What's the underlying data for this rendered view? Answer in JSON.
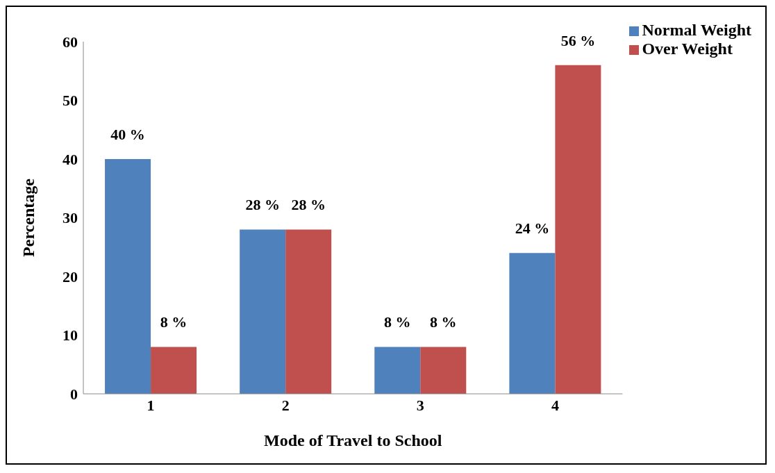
{
  "chart_data": {
    "type": "bar",
    "categories": [
      "1",
      "2",
      "3",
      "4"
    ],
    "xlabel": "Mode of Travel to School",
    "ylabel": "Percentage",
    "ylim": [
      0,
      60
    ],
    "yticks": [
      0,
      10,
      20,
      30,
      40,
      50,
      60
    ],
    "legend": "top right",
    "series": [
      {
        "name": "Normal Weight",
        "color": "#4f81bd",
        "values": [
          40,
          28,
          8,
          24
        ],
        "value_labels": [
          "40 %",
          "28 %",
          "8 %",
          "24 %"
        ]
      },
      {
        "name": "Over Weight",
        "color": "#c0504d",
        "values": [
          8,
          28,
          8,
          56
        ],
        "value_labels": [
          "8 %",
          "28 %",
          "8 %",
          "56 %"
        ]
      }
    ]
  }
}
